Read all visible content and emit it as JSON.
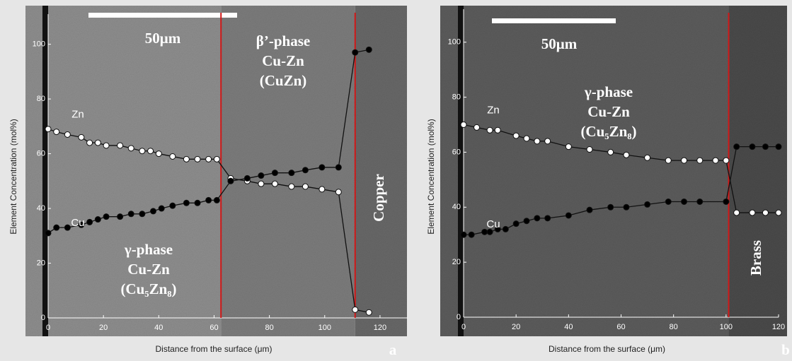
{
  "chart_data": [
    {
      "type": "line",
      "x_label": "Distance from the surface (μm)",
      "y_label": "Element Concentration (mol%)",
      "xlim": [
        0,
        130
      ],
      "ylim": [
        0,
        111
      ],
      "xticks": [
        0,
        20,
        40,
        60,
        80,
        100,
        120
      ],
      "yticks": [
        0,
        20,
        40,
        60,
        80,
        100
      ],
      "boundaries": [
        62.5,
        111
      ],
      "scale_bar": "50μm",
      "panel": "a",
      "annotations": [
        [
          "β’-phase",
          "Cu-Zn",
          "(CuZn)"
        ],
        [
          "γ-phase",
          "Cu-Zn",
          "(Cu₅Zn₈)"
        ],
        [
          "Copper"
        ]
      ],
      "series": [
        {
          "name": "Zn",
          "color": "#ffffff",
          "x": [
            0,
            3,
            7,
            12,
            15,
            18,
            21,
            26,
            30,
            34,
            37,
            40,
            45,
            50,
            54,
            58,
            61,
            66,
            72,
            77,
            82,
            88,
            93,
            99,
            105,
            111,
            116
          ],
          "values": [
            69,
            68,
            67,
            66,
            64,
            64,
            63,
            63,
            62,
            61,
            61,
            60,
            59,
            58,
            58,
            58,
            58,
            51,
            50,
            49,
            49,
            48,
            48,
            47,
            46,
            3,
            2
          ]
        },
        {
          "name": "Cu",
          "color": "#000000",
          "x": [
            0,
            3,
            7,
            12,
            15,
            18,
            21,
            26,
            30,
            34,
            38,
            41,
            45,
            50,
            54,
            58,
            61,
            66,
            72,
            77,
            82,
            88,
            93,
            99,
            105,
            111,
            116
          ],
          "values": [
            31,
            33,
            33,
            34,
            35,
            36,
            37,
            37,
            38,
            38,
            39,
            40,
            41,
            42,
            42,
            43,
            43,
            50,
            51,
            52,
            53,
            53,
            54,
            55,
            55,
            97,
            98
          ]
        }
      ]
    },
    {
      "type": "line",
      "x_label": "Distance from the surface (μm)",
      "y_label": "Element Concentration (mol%)",
      "xlim": [
        0,
        120
      ],
      "ylim": [
        0,
        112
      ],
      "xticks": [
        0,
        20,
        40,
        60,
        80,
        100,
        120
      ],
      "yticks": [
        0,
        20,
        40,
        60,
        80,
        100
      ],
      "boundaries": [
        101
      ],
      "scale_bar": "50μm",
      "panel": "b",
      "annotations": [
        [
          "γ-phase",
          "Cu-Zn",
          "(Cu₅Zn₈)"
        ],
        [
          "Brass"
        ]
      ],
      "series": [
        {
          "name": "Zn",
          "color": "#ffffff",
          "x": [
            0,
            5,
            10,
            13,
            20,
            24,
            28,
            32,
            40,
            48,
            56,
            62,
            70,
            78,
            84,
            90,
            96,
            100,
            104,
            110,
            115,
            120
          ],
          "values": [
            70,
            69,
            68,
            68,
            66,
            65,
            64,
            64,
            62,
            61,
            60,
            59,
            58,
            57,
            57,
            57,
            57,
            57,
            38,
            38,
            38,
            38
          ]
        },
        {
          "name": "Cu",
          "color": "#000000",
          "x": [
            0,
            3,
            8,
            10,
            13,
            16,
            20,
            24,
            28,
            32,
            40,
            48,
            56,
            62,
            70,
            78,
            84,
            90,
            100,
            104,
            110,
            115,
            120
          ],
          "values": [
            30,
            30,
            31,
            31,
            32,
            32,
            34,
            35,
            36,
            36,
            37,
            39,
            40,
            40,
            41,
            42,
            42,
            42,
            42,
            62,
            62,
            62,
            62
          ]
        }
      ]
    }
  ]
}
